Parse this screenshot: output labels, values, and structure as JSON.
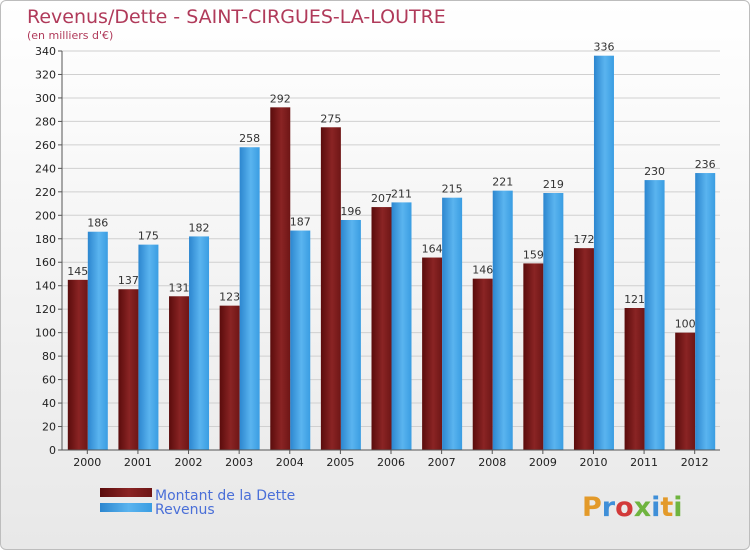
{
  "chart_data": {
    "type": "bar",
    "title": "Revenus/Dette - SAINT-CIRGUES-LA-LOUTRE",
    "subtitle": "(en milliers d'€)",
    "categories": [
      "2000",
      "2001",
      "2002",
      "2003",
      "2004",
      "2005",
      "2006",
      "2007",
      "2008",
      "2009",
      "2010",
      "2011",
      "2012"
    ],
    "series": [
      {
        "name": "Montant de la Dette",
        "color": "#7a1a1a",
        "values": [
          145,
          137,
          131,
          123,
          292,
          275,
          207,
          164,
          146,
          159,
          172,
          121,
          100
        ]
      },
      {
        "name": "Revenus",
        "color": "#3d9ce0",
        "values": [
          186,
          175,
          182,
          258,
          187,
          196,
          211,
          215,
          221,
          219,
          336,
          230,
          236
        ]
      }
    ],
    "ylim": [
      0,
      340
    ],
    "ytick_step": 20,
    "grid": true,
    "legend_position": "bottom-left"
  },
  "logo": {
    "text": "Proxiti",
    "letter_colors": [
      "#e39a2a",
      "#3f8fd8",
      "#d23a3a",
      "#6fb43f",
      "#3f8fd8",
      "#e39a2a",
      "#6fb43f"
    ]
  }
}
